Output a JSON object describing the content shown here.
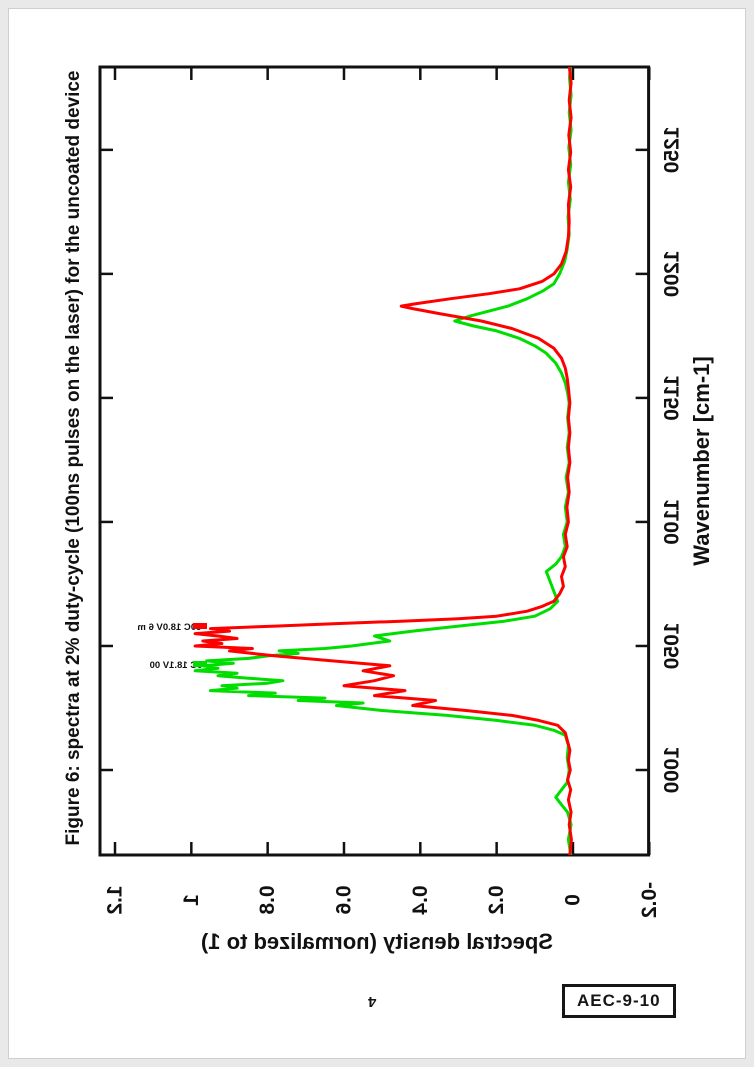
{
  "page": {
    "number": "4",
    "stamp": "AEC-9-10",
    "background": "#ffffff",
    "frame_color": "#e9e9e9"
  },
  "figure": {
    "caption": "Figure 6: spectra at 2% duty-cycle (100ns pulses on the laser) for the uncoated device",
    "orientation": "figure rotated 90deg counter-clockwise on portrait page; y-axis text appears mirrored"
  },
  "annotations": [
    {
      "label": "-60C 18.0V 6 m",
      "color": "#ff0000",
      "marker": "red-dash"
    },
    {
      "label": "0C 18.1V 00",
      "color": "#00dd00",
      "marker": "green-dash"
    }
  ],
  "chart_data": {
    "type": "line",
    "title": "",
    "xlabel": "Wavenumber [cm-1]",
    "ylabel": "Spectral density (normalized to 1)",
    "xlim": [
      966,
      1283
    ],
    "ylim": [
      -0.2,
      1.2
    ],
    "x_ticks": [
      1000,
      1050,
      1100,
      1150,
      1200,
      1250
    ],
    "y_ticks": [
      1.2,
      1,
      0.8,
      0.6,
      0.4,
      0.2,
      0,
      -0.2
    ],
    "y_tick_labels": [
      "1.2",
      "1",
      "0.8",
      "0.6",
      "0.4",
      "0.2",
      "0",
      "-0.2"
    ],
    "grid": false,
    "axis_color": "#111111",
    "series": [
      {
        "name": "0C 18.1V 00",
        "color": "#00dd00",
        "points": [
          [
            966,
            0.006
          ],
          [
            972,
            0.012
          ],
          [
            978,
            0.005
          ],
          [
            983,
            0.014
          ],
          [
            986,
            0.03
          ],
          [
            989,
            0.045
          ],
          [
            992,
            0.03
          ],
          [
            995,
            0.015
          ],
          [
            1000,
            0.01
          ],
          [
            1005,
            0.015
          ],
          [
            1010,
            0.012
          ],
          [
            1014,
            0.02
          ],
          [
            1016,
            0.05
          ],
          [
            1018,
            0.1
          ],
          [
            1020,
            0.2
          ],
          [
            1022,
            0.33
          ],
          [
            1024,
            0.5
          ],
          [
            1026,
            0.62
          ],
          [
            1027,
            0.55
          ],
          [
            1028,
            0.72
          ],
          [
            1029,
            0.65
          ],
          [
            1030,
            0.85
          ],
          [
            1031,
            0.78
          ],
          [
            1032,
            0.95
          ],
          [
            1033,
            0.88
          ],
          [
            1034,
            0.92
          ],
          [
            1035,
            0.8
          ],
          [
            1036,
            0.76
          ],
          [
            1037,
            0.85
          ],
          [
            1038,
            0.93
          ],
          [
            1039,
            0.88
          ],
          [
            1040,
            0.99
          ],
          [
            1041,
            0.93
          ],
          [
            1042,
            0.97
          ],
          [
            1043,
            0.89
          ],
          [
            1044,
            0.96
          ],
          [
            1045,
            0.85
          ],
          [
            1046,
            0.8
          ],
          [
            1047,
            0.72
          ],
          [
            1048,
            0.77
          ],
          [
            1049,
            0.65
          ],
          [
            1050,
            0.58
          ],
          [
            1052,
            0.48
          ],
          [
            1054,
            0.52
          ],
          [
            1056,
            0.42
          ],
          [
            1058,
            0.3
          ],
          [
            1060,
            0.18
          ],
          [
            1062,
            0.1
          ],
          [
            1065,
            0.06
          ],
          [
            1068,
            0.04
          ],
          [
            1072,
            0.05
          ],
          [
            1076,
            0.06
          ],
          [
            1080,
            0.07
          ],
          [
            1083,
            0.045
          ],
          [
            1086,
            0.03
          ],
          [
            1090,
            0.02
          ],
          [
            1095,
            0.025
          ],
          [
            1100,
            0.015
          ],
          [
            1106,
            0.02
          ],
          [
            1112,
            0.012
          ],
          [
            1118,
            0.018
          ],
          [
            1124,
            0.01
          ],
          [
            1130,
            0.015
          ],
          [
            1136,
            0.01
          ],
          [
            1142,
            0.014
          ],
          [
            1148,
            0.01
          ],
          [
            1152,
            0.014
          ],
          [
            1156,
            0.02
          ],
          [
            1160,
            0.03
          ],
          [
            1164,
            0.045
          ],
          [
            1168,
            0.07
          ],
          [
            1171,
            0.1
          ],
          [
            1174,
            0.14
          ],
          [
            1177,
            0.2
          ],
          [
            1179,
            0.26
          ],
          [
            1181,
            0.31
          ],
          [
            1183,
            0.27
          ],
          [
            1185,
            0.22
          ],
          [
            1187,
            0.17
          ],
          [
            1190,
            0.12
          ],
          [
            1193,
            0.08
          ],
          [
            1196,
            0.05
          ],
          [
            1200,
            0.035
          ],
          [
            1205,
            0.022
          ],
          [
            1210,
            0.015
          ],
          [
            1216,
            0.01
          ],
          [
            1223,
            0.013
          ],
          [
            1230,
            0.007
          ],
          [
            1237,
            0.012
          ],
          [
            1244,
            0.006
          ],
          [
            1251,
            0.011
          ],
          [
            1258,
            0.005
          ],
          [
            1265,
            0.01
          ],
          [
            1272,
            0.005
          ],
          [
            1279,
            0.009
          ],
          [
            1283,
            0.007
          ]
        ]
      },
      {
        "name": "-60C 18.0V 6 m",
        "color": "#ff0000",
        "points": [
          [
            966,
            0.008
          ],
          [
            972,
            0.004
          ],
          [
            978,
            0.01
          ],
          [
            983,
            0.005
          ],
          [
            988,
            0.012
          ],
          [
            992,
            0.006
          ],
          [
            996,
            0.014
          ],
          [
            1000,
            0.007
          ],
          [
            1004,
            0.012
          ],
          [
            1008,
            0.008
          ],
          [
            1012,
            0.015
          ],
          [
            1015,
            0.02
          ],
          [
            1018,
            0.04
          ],
          [
            1020,
            0.09
          ],
          [
            1022,
            0.16
          ],
          [
            1024,
            0.28
          ],
          [
            1026,
            0.42
          ],
          [
            1028,
            0.36
          ],
          [
            1030,
            0.52
          ],
          [
            1032,
            0.44
          ],
          [
            1034,
            0.6
          ],
          [
            1036,
            0.52
          ],
          [
            1038,
            0.47
          ],
          [
            1040,
            0.55
          ],
          [
            1042,
            0.48
          ],
          [
            1044,
            0.63
          ],
          [
            1046,
            0.78
          ],
          [
            1048,
            0.9
          ],
          [
            1049,
            0.84
          ],
          [
            1050,
            0.99
          ],
          [
            1051,
            0.92
          ],
          [
            1052,
            0.97
          ],
          [
            1053,
            0.88
          ],
          [
            1054,
            0.93
          ],
          [
            1055,
            0.99
          ],
          [
            1056,
            0.9
          ],
          [
            1057,
            0.95
          ],
          [
            1058,
            0.78
          ],
          [
            1059,
            0.62
          ],
          [
            1060,
            0.45
          ],
          [
            1061,
            0.3
          ],
          [
            1062,
            0.2
          ],
          [
            1064,
            0.12
          ],
          [
            1066,
            0.08
          ],
          [
            1068,
            0.05
          ],
          [
            1071,
            0.035
          ],
          [
            1074,
            0.025
          ],
          [
            1078,
            0.03
          ],
          [
            1082,
            0.02
          ],
          [
            1086,
            0.025
          ],
          [
            1090,
            0.015
          ],
          [
            1095,
            0.02
          ],
          [
            1100,
            0.012
          ],
          [
            1106,
            0.016
          ],
          [
            1112,
            0.01
          ],
          [
            1118,
            0.014
          ],
          [
            1124,
            0.008
          ],
          [
            1130,
            0.012
          ],
          [
            1136,
            0.008
          ],
          [
            1142,
            0.012
          ],
          [
            1148,
            0.008
          ],
          [
            1154,
            0.012
          ],
          [
            1158,
            0.015
          ],
          [
            1162,
            0.02
          ],
          [
            1166,
            0.03
          ],
          [
            1170,
            0.05
          ],
          [
            1174,
            0.09
          ],
          [
            1178,
            0.16
          ],
          [
            1181,
            0.24
          ],
          [
            1184,
            0.35
          ],
          [
            1186,
            0.42
          ],
          [
            1187,
            0.45
          ],
          [
            1188,
            0.41
          ],
          [
            1190,
            0.32
          ],
          [
            1192,
            0.22
          ],
          [
            1194,
            0.14
          ],
          [
            1197,
            0.08
          ],
          [
            1200,
            0.05
          ],
          [
            1204,
            0.03
          ],
          [
            1209,
            0.018
          ],
          [
            1215,
            0.012
          ],
          [
            1221,
            0.01
          ],
          [
            1228,
            0.012
          ],
          [
            1235,
            0.006
          ],
          [
            1242,
            0.012
          ],
          [
            1249,
            0.006
          ],
          [
            1256,
            0.011
          ],
          [
            1263,
            0.005
          ],
          [
            1270,
            0.01
          ],
          [
            1277,
            0.005
          ],
          [
            1283,
            0.009
          ]
        ]
      }
    ]
  }
}
